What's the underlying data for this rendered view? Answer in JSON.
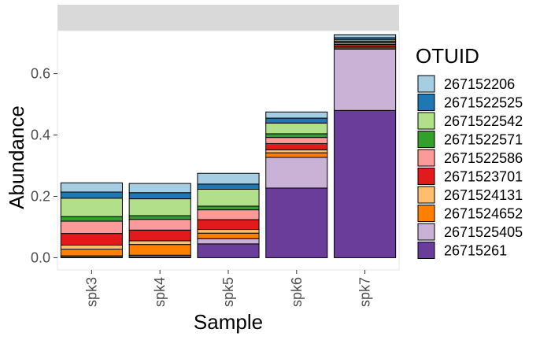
{
  "chart_data": {
    "type": "bar",
    "stacked": true,
    "title": "",
    "xlabel": "Sample",
    "ylabel": "Abundance",
    "ylim": [
      -0.04,
      0.74
    ],
    "yticks": [
      0.0,
      0.2,
      0.4,
      0.6
    ],
    "ytick_labels": [
      "0.0",
      "0.2",
      "0.4",
      "0.6"
    ],
    "categories": [
      "spk3",
      "spk4",
      "spk5",
      "spk6",
      "spk7"
    ],
    "legend_title": "OTUID",
    "legend_position": "right",
    "facet_strip": true,
    "grid": false,
    "series": [
      {
        "name": "267152206",
        "color": "#A6CEE3",
        "values": [
          0.03,
          0.03,
          0.035,
          0.02,
          0.01
        ]
      },
      {
        "name": "2671522525",
        "color": "#1F78B4",
        "values": [
          0.02,
          0.02,
          0.017,
          0.016,
          0.007
        ]
      },
      {
        "name": "2671522542",
        "color": "#B2DF8A",
        "values": [
          0.06,
          0.055,
          0.055,
          0.035,
          0.005
        ]
      },
      {
        "name": "2671522571",
        "color": "#33A02C",
        "values": [
          0.015,
          0.012,
          0.012,
          0.012,
          0.005
        ]
      },
      {
        "name": "2671522586",
        "color": "#FB9A99",
        "values": [
          0.04,
          0.035,
          0.032,
          0.02,
          0.005
        ]
      },
      {
        "name": "2671523701",
        "color": "#E31A1C",
        "values": [
          0.038,
          0.035,
          0.032,
          0.02,
          0.007
        ]
      },
      {
        "name": "2671524131",
        "color": "#FDBF6F",
        "values": [
          0.013,
          0.012,
          0.012,
          0.01,
          0.004
        ]
      },
      {
        "name": "2671524652",
        "color": "#FF7F00",
        "values": [
          0.022,
          0.035,
          0.018,
          0.015,
          0.004
        ]
      },
      {
        "name": "2671525405",
        "color": "#CAB2D6",
        "values": [
          0.004,
          0.005,
          0.017,
          0.1,
          0.2
        ]
      },
      {
        "name": "26715261",
        "color": "#6A3D9A",
        "values": [
          0.002,
          0.003,
          0.045,
          0.227,
          0.48
        ]
      }
    ]
  }
}
